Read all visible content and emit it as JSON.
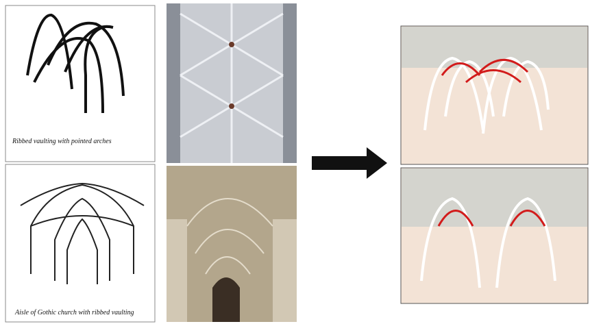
{
  "panels": {
    "top_sketch_caption": "Ribbed vaulting with pointed arches",
    "bottom_sketch_caption": "Aisle of Gothic church with ribbed vaulting"
  }
}
